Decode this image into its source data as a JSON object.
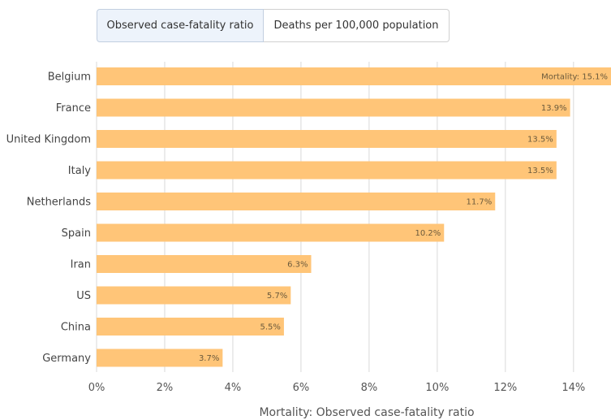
{
  "tabs": [
    {
      "label": "Observed case-fatality ratio",
      "active": true
    },
    {
      "label": "Deaths per 100,000 population",
      "active": false
    }
  ],
  "chart_data": {
    "type": "bar",
    "orientation": "horizontal",
    "categories": [
      "Belgium",
      "France",
      "United Kingdom",
      "Italy",
      "Netherlands",
      "Spain",
      "Iran",
      "US",
      "China",
      "Germany"
    ],
    "values": [
      15.1,
      13.9,
      13.5,
      13.5,
      11.7,
      10.2,
      6.3,
      5.7,
      5.5,
      3.7
    ],
    "data_labels": [
      "Mortality: 15.1%",
      "13.9%",
      "13.5%",
      "13.5%",
      "11.7%",
      "10.2%",
      "6.3%",
      "5.7%",
      "5.5%",
      "3.7%"
    ],
    "xticks": [
      0,
      2,
      4,
      6,
      8,
      10,
      12,
      14
    ],
    "xtick_labels": [
      "0%",
      "2%",
      "4%",
      "6%",
      "8%",
      "10%",
      "12%",
      "14%"
    ],
    "xlabel": "Mortality: Observed case-fatality ratio",
    "ylabel": "",
    "xlim": [
      0,
      15.1
    ],
    "grid": true,
    "legend": "none",
    "bar_color": "#ffc578",
    "grid_color": "#d9d9d9"
  }
}
